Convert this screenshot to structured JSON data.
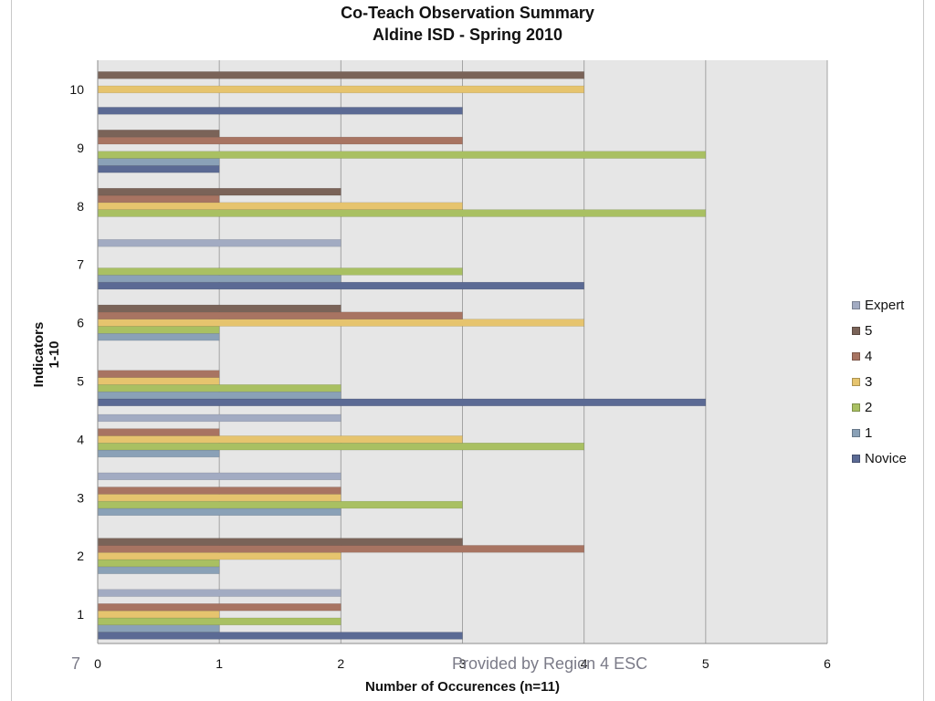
{
  "slide": {
    "page_number": "7",
    "footer": "Provided by Region 4 ESC"
  },
  "chart_data": {
    "type": "bar",
    "orientation": "horizontal",
    "title": "Co-Teach Observation Summary",
    "subtitle": "Aldine ISD - Spring 2010",
    "xlabel": "Number of Occurences (n=11)",
    "ylabel": "Indicators 1-10",
    "xlim": [
      0,
      6
    ],
    "x_ticks": [
      "0",
      "1",
      "2",
      "3",
      "4",
      "5",
      "6"
    ],
    "categories": [
      "1",
      "2",
      "3",
      "4",
      "5",
      "6",
      "7",
      "8",
      "9",
      "10"
    ],
    "grid": true,
    "legend_position": "right",
    "series": [
      {
        "name": "Novice",
        "color": "#5b6a94",
        "values": [
          3,
          0,
          0,
          0,
          5,
          0,
          4,
          0,
          1,
          3
        ]
      },
      {
        "name": "1",
        "color": "#8aa1b7",
        "values": [
          1,
          1,
          2,
          1,
          2,
          1,
          2,
          0,
          1,
          0
        ]
      },
      {
        "name": "2",
        "color": "#a9c062",
        "values": [
          2,
          1,
          3,
          4,
          2,
          1,
          3,
          5,
          5,
          0
        ]
      },
      {
        "name": "3",
        "color": "#e6c46e",
        "values": [
          1,
          2,
          2,
          3,
          1,
          4,
          0,
          3,
          0,
          4
        ]
      },
      {
        "name": "4",
        "color": "#a87462",
        "values": [
          2,
          4,
          2,
          1,
          1,
          3,
          0,
          1,
          3,
          0
        ]
      },
      {
        "name": "5",
        "color": "#7a6358",
        "values": [
          0,
          3,
          0,
          0,
          0,
          2,
          0,
          2,
          1,
          4
        ]
      },
      {
        "name": "Expert",
        "color": "#a2abc2",
        "values": [
          2,
          0,
          2,
          2,
          0,
          0,
          2,
          0,
          0,
          0
        ]
      }
    ]
  }
}
